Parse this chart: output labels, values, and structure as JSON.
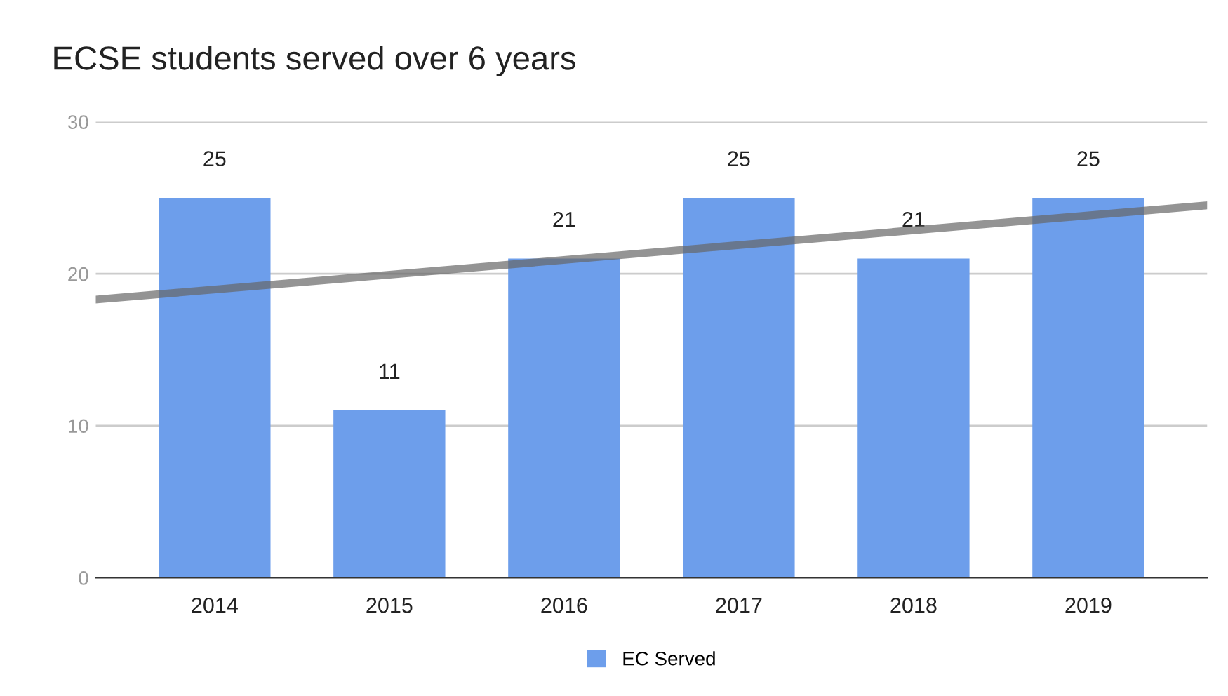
{
  "chart_data": {
    "type": "bar",
    "title": "ECSE students served over 6 years",
    "x": [
      2014,
      2015,
      2016,
      2017,
      2018,
      2019
    ],
    "xlim": [
      2013.32,
      2019.68
    ],
    "xticks": [
      2014,
      2015,
      2016,
      2017,
      2018,
      2019
    ],
    "ylim": [
      0,
      30
    ],
    "yticks": [
      0,
      10,
      20,
      30
    ],
    "grid": "y",
    "legend": "bottom",
    "series": [
      {
        "name": "EC Served",
        "color": "#6d9eeb",
        "values": [
          25,
          11,
          21,
          25,
          21,
          25
        ],
        "value_labels": [
          "25",
          "11",
          "21",
          "25",
          "21",
          "25"
        ]
      },
      {
        "type": "line",
        "color": "#666666",
        "x": [
          2013.32,
          2019.68
        ],
        "values": [
          18.3,
          24.5
        ]
      }
    ]
  }
}
